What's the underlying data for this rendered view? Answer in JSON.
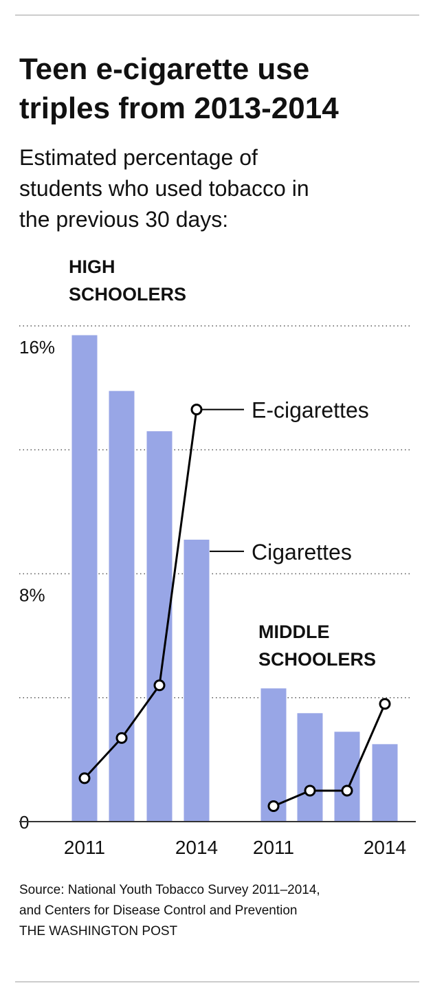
{
  "chart_data": {
    "type": "bar-line",
    "title": [
      "Teen e-cigarette use",
      "triples from 2013-2014"
    ],
    "subtitle": [
      "Estimated percentage of",
      "students who used tobacco in",
      "the previous 30 days:"
    ],
    "ylim": [
      0,
      16
    ],
    "yticks": [
      {
        "value": 0,
        "label": "0"
      },
      {
        "value": 8,
        "label": "8%"
      },
      {
        "value": 16,
        "label": "16%"
      }
    ],
    "grid_lines": [
      4,
      8,
      12,
      16
    ],
    "series": [
      {
        "name": "Cigarettes",
        "color": "#98a6e6"
      },
      {
        "name": "E-cigarettes",
        "color": "#000000"
      }
    ],
    "panels": [
      {
        "label": [
          "HIGH",
          "SCHOOLERS"
        ],
        "categories": [
          "2011",
          null,
          null,
          "2014"
        ],
        "values": [
          [
            15.7,
            13.9,
            12.6,
            9.1
          ],
          [
            1.4,
            2.7,
            4.4,
            13.3
          ]
        ]
      },
      {
        "label": [
          "MIDDLE",
          "SCHOOLERS"
        ],
        "categories": [
          "2011",
          null,
          null,
          "2014"
        ],
        "values": [
          [
            4.3,
            3.5,
            2.9,
            2.5
          ],
          [
            0.5,
            1.0,
            1.0,
            3.8
          ]
        ]
      }
    ],
    "source": [
      "Source: National Youth Tobacco Survey 2011–2014,",
      "and Centers for Disease Control and Prevention",
      "THE WASHINGTON POST"
    ]
  }
}
